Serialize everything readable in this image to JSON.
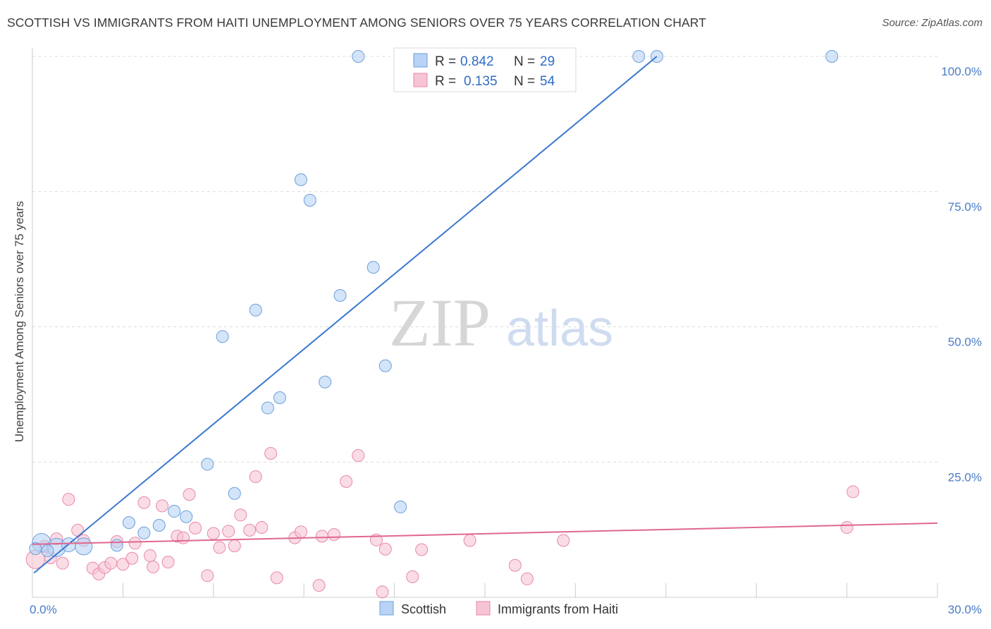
{
  "title": "SCOTTISH VS IMMIGRANTS FROM HAITI UNEMPLOYMENT AMONG SENIORS OVER 75 YEARS CORRELATION CHART",
  "source": "Source: ZipAtlas.com",
  "watermark": {
    "zip": "ZIP",
    "atlas": "atlas"
  },
  "colors": {
    "scottish_fill": "#b8d3f5",
    "scottish_stroke": "#6d9fdb",
    "scottish_line": "#3a78cf",
    "haiti_fill": "#f7c4d4",
    "haiti_stroke": "#e889a8",
    "haiti_line": "#e0678f",
    "value_text": "#2f6cc5",
    "grid": "#dcdcdc"
  },
  "legend_top": {
    "rows": [
      {
        "series": "Scottish",
        "r_label": "R =",
        "r_value": "0.842",
        "n_label": "N =",
        "n_value": "29"
      },
      {
        "series": "Immigrants from Haiti",
        "r_label": "R =",
        "r_value": "0.135",
        "n_label": "N =",
        "n_value": "54"
      }
    ]
  },
  "chart_data": {
    "type": "scatter",
    "title": "SCOTTISH VS IMMIGRANTS FROM HAITI UNEMPLOYMENT AMONG SENIORS OVER 75 YEARS CORRELATION CHART",
    "xlabel": "",
    "ylabel": "Unemployment Among Seniors over 75 years",
    "xlim": [
      0,
      30
    ],
    "ylim": [
      0,
      100
    ],
    "x_tick_labels": [
      {
        "value": 0,
        "label": "0.0%"
      },
      {
        "value": 30,
        "label": "30.0%"
      }
    ],
    "y_tick_labels": [
      {
        "value": 25,
        "label": "25.0%"
      },
      {
        "value": 50,
        "label": "50.0%"
      },
      {
        "value": 75,
        "label": "75.0%"
      },
      {
        "value": 100,
        "label": "100.0%"
      }
    ],
    "x_gridlines": [
      3,
      6,
      9,
      12,
      15,
      18,
      21,
      24,
      27,
      30
    ],
    "y_gridlines": [
      25,
      50,
      75,
      100
    ],
    "legend_position": "bottom",
    "series": [
      {
        "name": "Scottish",
        "color": "#b8d3f5",
        "trend": {
          "x": [
            0.05,
            20.7
          ],
          "y": [
            4.5,
            100
          ]
        },
        "points": [
          {
            "x": 10.8,
            "y": 100.0
          },
          {
            "x": 20.1,
            "y": 100.0
          },
          {
            "x": 20.7,
            "y": 100.0
          },
          {
            "x": 26.5,
            "y": 100.0
          },
          {
            "x": 8.9,
            "y": 77.2
          },
          {
            "x": 9.2,
            "y": 73.4
          },
          {
            "x": 11.3,
            "y": 61.0
          },
          {
            "x": 10.2,
            "y": 55.8
          },
          {
            "x": 7.4,
            "y": 53.1
          },
          {
            "x": 6.3,
            "y": 48.2
          },
          {
            "x": 11.7,
            "y": 42.8
          },
          {
            "x": 9.7,
            "y": 39.8
          },
          {
            "x": 8.2,
            "y": 36.9
          },
          {
            "x": 7.8,
            "y": 35.0
          },
          {
            "x": 5.8,
            "y": 24.6
          },
          {
            "x": 6.7,
            "y": 19.2
          },
          {
            "x": 12.2,
            "y": 16.7
          },
          {
            "x": 4.7,
            "y": 15.9
          },
          {
            "x": 5.1,
            "y": 14.9
          },
          {
            "x": 3.2,
            "y": 13.8
          },
          {
            "x": 4.2,
            "y": 13.3
          },
          {
            "x": 3.7,
            "y": 11.9
          },
          {
            "x": 0.3,
            "y": 10.1,
            "size": 13
          },
          {
            "x": 0.8,
            "y": 9.2,
            "size": 13
          },
          {
            "x": 1.7,
            "y": 9.4,
            "size": 12
          },
          {
            "x": 2.8,
            "y": 9.6
          },
          {
            "x": 1.2,
            "y": 9.7,
            "size": 10
          },
          {
            "x": 0.1,
            "y": 9.0
          },
          {
            "x": 0.5,
            "y": 8.6
          }
        ]
      },
      {
        "name": "Immigrants from Haiti",
        "color": "#f7c4d4",
        "trend": {
          "x": [
            0,
            30
          ],
          "y": [
            9.8,
            13.7
          ]
        },
        "points": [
          {
            "x": 0.1,
            "y": 7.0,
            "size": 13
          },
          {
            "x": 0.4,
            "y": 9.4
          },
          {
            "x": 0.6,
            "y": 7.3
          },
          {
            "x": 0.8,
            "y": 10.8
          },
          {
            "x": 1.0,
            "y": 6.3
          },
          {
            "x": 1.2,
            "y": 18.1
          },
          {
            "x": 1.5,
            "y": 12.4
          },
          {
            "x": 1.7,
            "y": 10.5
          },
          {
            "x": 2.0,
            "y": 5.4
          },
          {
            "x": 2.2,
            "y": 4.3
          },
          {
            "x": 2.4,
            "y": 5.5
          },
          {
            "x": 2.6,
            "y": 6.3
          },
          {
            "x": 2.8,
            "y": 10.3
          },
          {
            "x": 3.0,
            "y": 6.1
          },
          {
            "x": 3.3,
            "y": 7.2
          },
          {
            "x": 3.4,
            "y": 10.0
          },
          {
            "x": 3.7,
            "y": 17.5
          },
          {
            "x": 3.9,
            "y": 7.7
          },
          {
            "x": 4.0,
            "y": 5.6
          },
          {
            "x": 4.3,
            "y": 16.9
          },
          {
            "x": 4.5,
            "y": 6.5
          },
          {
            "x": 4.8,
            "y": 11.3
          },
          {
            "x": 5.0,
            "y": 11.0
          },
          {
            "x": 5.2,
            "y": 19.0
          },
          {
            "x": 5.4,
            "y": 12.8
          },
          {
            "x": 5.8,
            "y": 4.0
          },
          {
            "x": 6.0,
            "y": 11.8
          },
          {
            "x": 6.2,
            "y": 9.2
          },
          {
            "x": 6.5,
            "y": 12.2
          },
          {
            "x": 6.7,
            "y": 9.5
          },
          {
            "x": 6.9,
            "y": 15.2
          },
          {
            "x": 7.2,
            "y": 12.4
          },
          {
            "x": 7.4,
            "y": 22.3
          },
          {
            "x": 7.6,
            "y": 12.9
          },
          {
            "x": 7.9,
            "y": 26.6
          },
          {
            "x": 8.1,
            "y": 3.6
          },
          {
            "x": 8.7,
            "y": 11.0
          },
          {
            "x": 8.9,
            "y": 12.1
          },
          {
            "x": 9.5,
            "y": 2.2
          },
          {
            "x": 9.6,
            "y": 11.3
          },
          {
            "x": 10.0,
            "y": 11.6
          },
          {
            "x": 10.4,
            "y": 21.4
          },
          {
            "x": 10.8,
            "y": 26.2
          },
          {
            "x": 11.4,
            "y": 10.6
          },
          {
            "x": 11.6,
            "y": 1.0
          },
          {
            "x": 11.7,
            "y": 8.9
          },
          {
            "x": 12.6,
            "y": 3.8
          },
          {
            "x": 12.9,
            "y": 8.8
          },
          {
            "x": 14.5,
            "y": 10.5
          },
          {
            "x": 16.0,
            "y": 5.9
          },
          {
            "x": 16.4,
            "y": 3.4
          },
          {
            "x": 17.6,
            "y": 10.5
          },
          {
            "x": 27.2,
            "y": 19.5
          },
          {
            "x": 27.0,
            "y": 12.9
          }
        ]
      }
    ]
  }
}
